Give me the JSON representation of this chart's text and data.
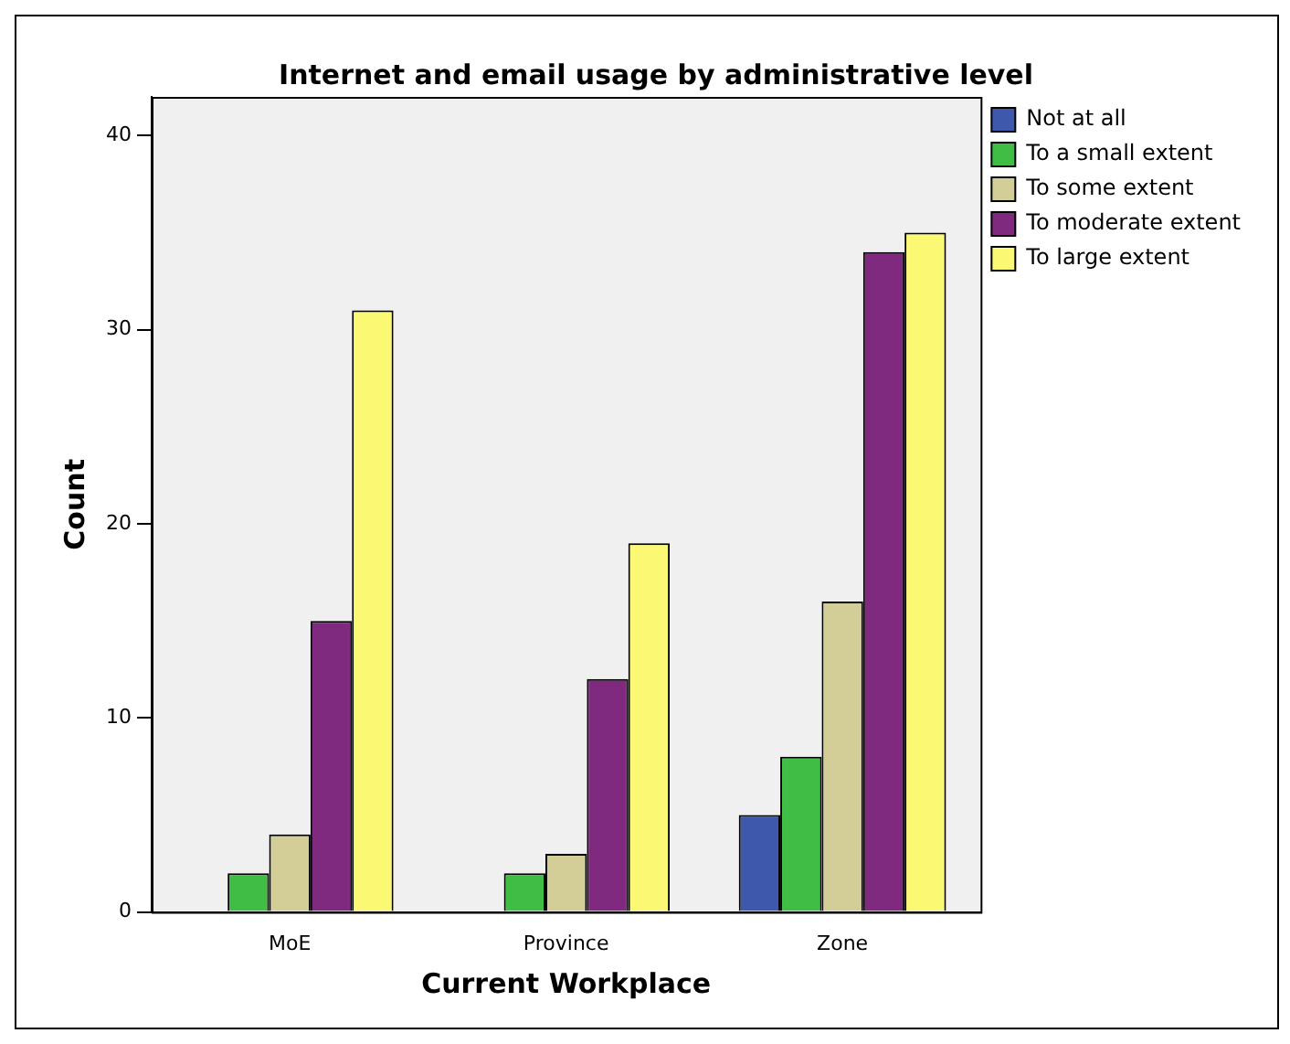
{
  "chart_data": {
    "type": "bar",
    "title": "Internet and email usage by administrative level",
    "xlabel": "Current Workplace",
    "ylabel": "Count",
    "categories": [
      "MoE",
      "Province",
      "Zone"
    ],
    "series": [
      {
        "name": "Not at all",
        "color": "#3e58ac",
        "values": [
          null,
          null,
          5
        ]
      },
      {
        "name": "To a small extent",
        "color": "#3fbd45",
        "values": [
          2,
          2,
          8
        ]
      },
      {
        "name": "To some extent",
        "color": "#d3ce97",
        "values": [
          4,
          3,
          16
        ]
      },
      {
        "name": "To moderate extent",
        "color": "#7f2a7f",
        "values": [
          15,
          12,
          34
        ]
      },
      {
        "name": "To large extent",
        "color": "#fbf873",
        "values": [
          31,
          19,
          35
        ]
      }
    ],
    "ylim": [
      0,
      42
    ],
    "yticks": [
      0,
      10,
      20,
      30,
      40
    ],
    "grid": false,
    "legend": "top right"
  }
}
